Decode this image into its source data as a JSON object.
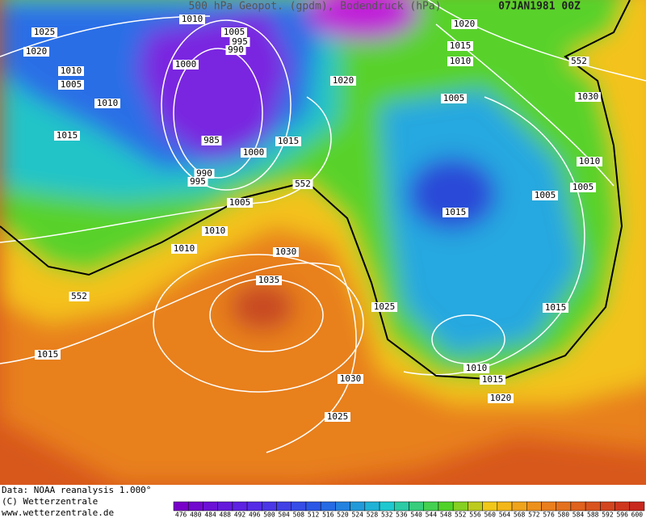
{
  "header": {
    "title": "500 hPa Geopot. (gpdm), Bodendruck (hPa)",
    "date": "07JAN1981 00Z"
  },
  "isobar_labels": [
    "1010",
    "1025",
    "1005",
    "995",
    "990",
    "1020",
    "1010",
    "1000",
    "1005",
    "1020",
    "1010",
    "1020",
    "1015",
    "1010",
    "552",
    "1005",
    "1030",
    "1015",
    "985",
    "1015",
    "1000",
    "990",
    "995",
    "552",
    "1010",
    "1005",
    "1005",
    "1005",
    "1015",
    "1010",
    "1010",
    "1030",
    "1035",
    "552",
    "1025",
    "1015",
    "1015",
    "1030",
    "1010",
    "1015",
    "1020",
    "1025"
  ],
  "footer": {
    "source": "Data: NOAA reanalysis 1.000°",
    "copyright": "(C) Wetterzentrale",
    "url": "www.wetterzentrale.de"
  },
  "scale": {
    "ticks": [
      476,
      480,
      484,
      488,
      492,
      496,
      500,
      504,
      508,
      512,
      516,
      520,
      524,
      528,
      532,
      536,
      540,
      544,
      548,
      552,
      556,
      560,
      564,
      568,
      572,
      576,
      580,
      584,
      588,
      592,
      596,
      600
    ]
  }
}
